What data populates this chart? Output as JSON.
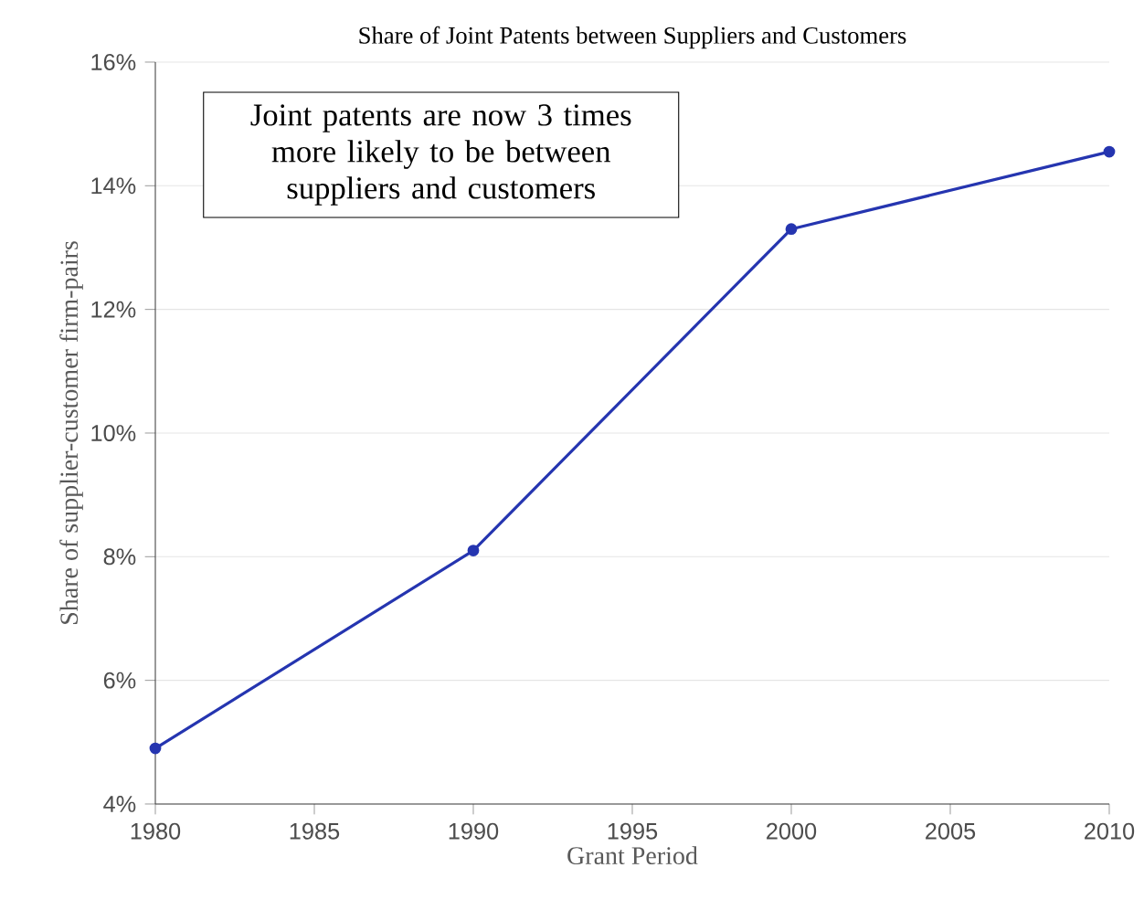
{
  "chart_data": {
    "type": "line",
    "title": "Share of Joint Patents between Suppliers and Customers",
    "xlabel": "Grant Period",
    "ylabel": "Share of supplier-customer firm-pairs",
    "x": [
      1980,
      1990,
      2000,
      2010
    ],
    "series": [
      {
        "color": "#2535b0",
        "values": [
          4.9,
          8.1,
          13.3,
          14.55
        ]
      }
    ],
    "xlim": [
      1980,
      2010
    ],
    "xticks": [
      1980,
      1985,
      1990,
      1995,
      2000,
      2005,
      2010
    ],
    "ylim": [
      4,
      16
    ],
    "yticks": [
      {
        "value": 4,
        "label": "4%"
      },
      {
        "value": 6,
        "label": "6%"
      },
      {
        "value": 8,
        "label": "8%"
      },
      {
        "value": 10,
        "label": "10%"
      },
      {
        "value": 12,
        "label": "12%"
      },
      {
        "value": 14,
        "label": "14%"
      },
      {
        "value": 16,
        "label": "16%"
      }
    ],
    "grid": "y",
    "marker": "circle",
    "line_style": "solid",
    "annotations": [
      "Joint patents are now 3 times more likely to be between suppliers and customers"
    ]
  }
}
